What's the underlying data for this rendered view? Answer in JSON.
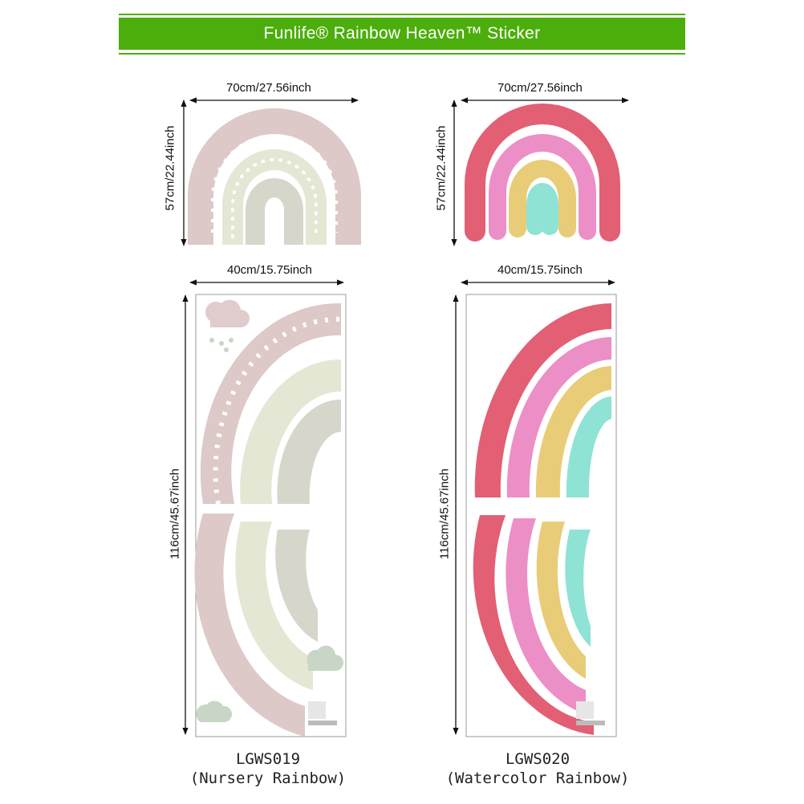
{
  "banner": {
    "title": "Funlife® Rainbow Heaven™ Sticker",
    "color": "#4cae0c"
  },
  "products": [
    {
      "width_label": "70cm/27.56inch",
      "height_label": "57cm/22.44inch",
      "sheet_width_label": "40cm/15.75inch",
      "sheet_height_label": "116cm/45.67inch",
      "code": "LGWS019",
      "name": "(Nursery Rainbow)",
      "colors": {
        "outer": "#dcc9c8",
        "middle": "#e4e7d3",
        "inner": "#d6d6cb",
        "cloud_pink": "#e0cccc",
        "cloud_green": "#c7d6c5"
      }
    },
    {
      "width_label": "70cm/27.56inch",
      "height_label": "57cm/22.44inch",
      "sheet_width_label": "40cm/15.75inch",
      "sheet_height_label": "116cm/45.67inch",
      "code": "LGWS020",
      "name": "(Watercolor Rainbow)",
      "colors": {
        "red": "#e25f74",
        "pink": "#ec8fc6",
        "yellow": "#e8cc78",
        "mint": "#8fe3d4"
      }
    }
  ]
}
